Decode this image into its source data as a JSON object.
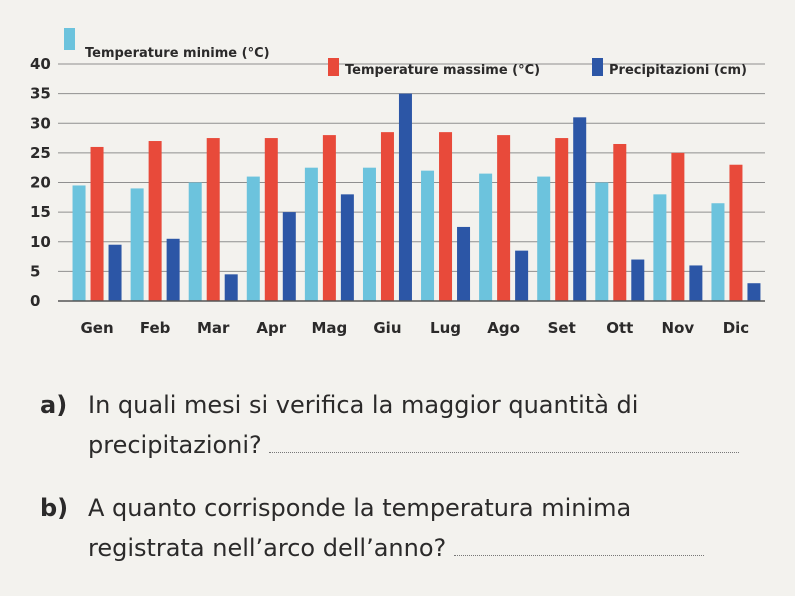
{
  "chart_data": {
    "type": "bar",
    "categories": [
      "Gen",
      "Feb",
      "Mar",
      "Apr",
      "Mag",
      "Giu",
      "Lug",
      "Ago",
      "Set",
      "Ott",
      "Nov",
      "Dic"
    ],
    "series": [
      {
        "name": "Temperature minime (°C)",
        "color": "#6cc3dd",
        "values": [
          19.5,
          19,
          20,
          21,
          22.5,
          22.5,
          22,
          21.5,
          21,
          20,
          18,
          16.5
        ]
      },
      {
        "name": "Temperature massime (°C)",
        "color": "#e84a3a",
        "values": [
          26,
          27,
          27.5,
          27.5,
          28,
          28.5,
          28.5,
          28,
          27.5,
          26.5,
          25,
          23
        ]
      },
      {
        "name": "Precipitazioni (cm)",
        "color": "#2c56a6",
        "values": [
          9.5,
          10.5,
          4.5,
          15,
          18,
          35,
          12.5,
          8.5,
          31,
          7,
          6,
          3
        ]
      }
    ],
    "yticks": [
      "0",
      "5",
      "10",
      "15",
      "20",
      "25",
      "30",
      "35",
      "40"
    ],
    "ylim": [
      0,
      40
    ],
    "grid": true,
    "legend_position": "top"
  },
  "questions": [
    {
      "letter": "a)",
      "line1": "In quali mesi si verifica la maggior quantità di",
      "line2": "precipitazioni?"
    },
    {
      "letter": "b)",
      "line1": "A quanto corrisponde la temperatura minima",
      "line2": "registrata nell’arco dell’anno?"
    }
  ]
}
